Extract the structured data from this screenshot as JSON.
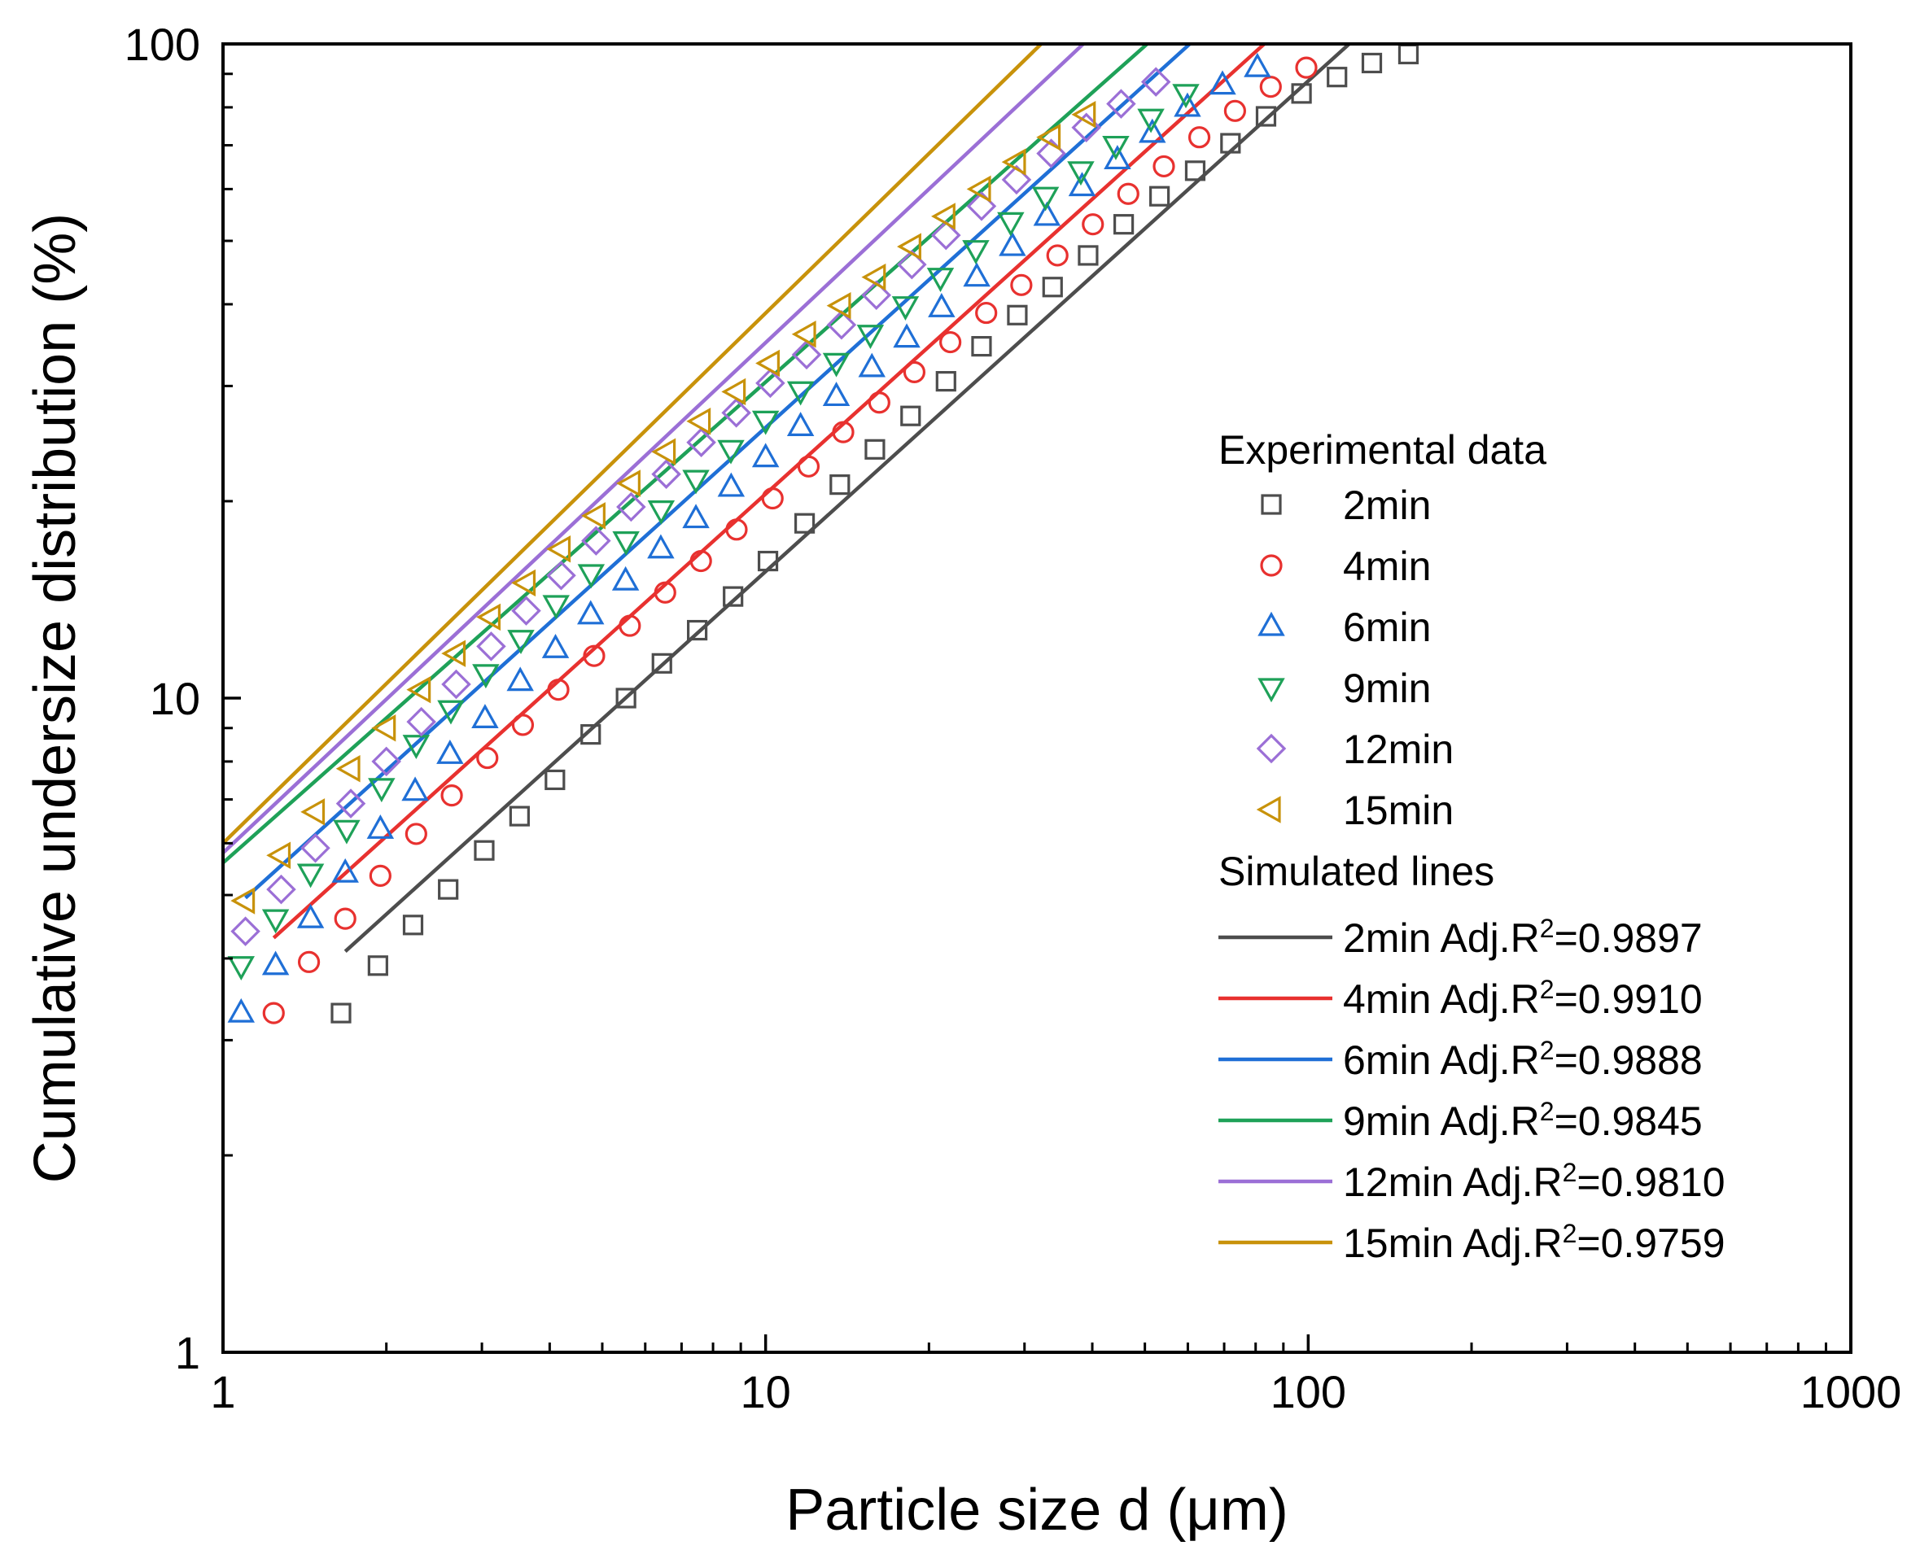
{
  "chart_data": {
    "type": "scatter",
    "xlabel": "Particle size d (μm)",
    "ylabel": "Cumulative undersize distribution (%)",
    "xscale": "log",
    "yscale": "log",
    "xlim": [
      1,
      1000
    ],
    "ylim": [
      1,
      100
    ],
    "x_ticks": [
      {
        "value": 1,
        "label": "1"
      },
      {
        "value": 10,
        "label": "10"
      },
      {
        "value": 100,
        "label": "100"
      },
      {
        "value": 1000,
        "label": "1000"
      }
    ],
    "y_ticks": [
      {
        "value": 1,
        "label": "1"
      },
      {
        "value": 10,
        "label": "10"
      },
      {
        "value": 100,
        "label": "100"
      }
    ],
    "legend_position": "right",
    "legend": {
      "experimental_header": "Experimental data",
      "simulated_header": "Simulated lines"
    },
    "series": [
      {
        "name": "2min",
        "marker": "square",
        "color": "#4d4d4d",
        "fit_label": "2min Adj.R",
        "fit_r2": "=0.9897",
        "x": [
          1.65,
          1.93,
          2.24,
          2.6,
          3.03,
          3.52,
          4.09,
          4.76,
          5.53,
          6.44,
          7.48,
          8.71,
          10.1,
          11.8,
          13.7,
          15.9,
          18.5,
          21.5,
          25.0,
          29.1,
          33.8,
          39.3,
          45.7,
          53.2,
          61.9,
          71.9,
          83.6,
          97.2,
          113,
          131,
          153
        ],
        "y": [
          3.3,
          3.9,
          4.5,
          5.1,
          5.85,
          6.6,
          7.5,
          8.8,
          10.0,
          11.3,
          12.7,
          14.3,
          16.2,
          18.5,
          21.2,
          24.0,
          27.0,
          30.5,
          34.5,
          38.5,
          42.5,
          47.5,
          53.0,
          58.5,
          64.0,
          70.5,
          77.5,
          84.0,
          89.0,
          93.5,
          96.5
        ],
        "fit": {
          "x": [
            1.68,
            119
          ],
          "y": [
            4.1,
            100
          ]
        }
      },
      {
        "name": "4min",
        "marker": "circle",
        "color": "#e8312f",
        "fit_label": "4min Adj.R",
        "fit_r2": "=0.9910",
        "x": [
          1.24,
          1.44,
          1.68,
          1.95,
          2.27,
          2.64,
          3.07,
          3.57,
          4.15,
          4.83,
          5.62,
          6.53,
          7.6,
          8.84,
          10.3,
          12.0,
          13.9,
          16.2,
          18.8,
          21.9,
          25.5,
          29.6,
          34.5,
          40.1,
          46.6,
          54.2,
          63.0,
          73.3,
          85.3,
          99.2
        ],
        "y": [
          3.3,
          3.95,
          4.6,
          5.35,
          6.2,
          7.1,
          8.1,
          9.1,
          10.3,
          11.6,
          12.9,
          14.5,
          16.2,
          18.1,
          20.2,
          22.6,
          25.5,
          28.3,
          31.5,
          35.0,
          38.8,
          42.8,
          47.5,
          53.0,
          59.0,
          65.0,
          72.0,
          79.0,
          86.0,
          92.0
        ],
        "fit": {
          "x": [
            1.24,
            83
          ],
          "y": [
            4.3,
            100
          ]
        }
      },
      {
        "name": "6min",
        "marker": "triangle-up",
        "color": "#1f6fd6",
        "fit_label": "6min Adj.R",
        "fit_r2": "=0.9888",
        "x": [
          1.08,
          1.25,
          1.45,
          1.68,
          1.95,
          2.26,
          2.62,
          3.04,
          3.53,
          4.1,
          4.76,
          5.52,
          6.41,
          7.44,
          8.64,
          10.0,
          11.6,
          13.5,
          15.7,
          18.2,
          21.1,
          24.5,
          28.5,
          33.0,
          38.3,
          44.5,
          51.6,
          59.9,
          69.5,
          80.6
        ],
        "y": [
          3.3,
          3.9,
          4.6,
          5.4,
          6.3,
          7.2,
          8.2,
          9.3,
          10.6,
          11.9,
          13.4,
          15.1,
          16.9,
          18.8,
          21.0,
          23.3,
          26.0,
          28.9,
          32.0,
          35.5,
          39.5,
          44.0,
          49.0,
          54.5,
          60.5,
          66.5,
          73.0,
          80.0,
          86.5,
          92.0
        ],
        "fit": {
          "x": [
            1.1,
            60.5
          ],
          "y": [
            4.95,
            100
          ]
        }
      },
      {
        "name": "9min",
        "marker": "triangle-down",
        "color": "#1ea158",
        "fit_label": "9min Adj.R",
        "fit_r2": "=0.9845",
        "x": [
          1.08,
          1.25,
          1.45,
          1.69,
          1.96,
          2.27,
          2.63,
          3.05,
          3.54,
          4.11,
          4.77,
          5.53,
          6.42,
          7.44,
          8.63,
          10.0,
          11.6,
          13.5,
          15.6,
          18.1,
          21.0,
          24.4,
          28.3,
          32.8,
          38.1,
          44.2,
          51.3,
          59.5
        ],
        "y": [
          3.9,
          4.6,
          5.4,
          6.3,
          7.3,
          8.5,
          9.6,
          10.9,
          12.3,
          13.9,
          15.5,
          17.4,
          19.4,
          21.6,
          24.0,
          26.6,
          29.5,
          32.6,
          36.0,
          39.8,
          44.0,
          48.5,
          53.5,
          58.5,
          64.0,
          70.0,
          77.0,
          84.0
        ],
        "fit": {
          "x": [
            1.0,
            50.5
          ],
          "y": [
            5.6,
            100
          ]
        }
      },
      {
        "name": "12min",
        "marker": "diamond",
        "color": "#9b6fd6",
        "fit_label": "12min Adj.R",
        "fit_r2": "=0.9810",
        "x": [
          1.1,
          1.28,
          1.48,
          1.72,
          2.0,
          2.32,
          2.69,
          3.12,
          3.62,
          4.2,
          4.87,
          5.65,
          6.56,
          7.61,
          8.83,
          10.2,
          11.9,
          13.8,
          16.0,
          18.6,
          21.5,
          25.0,
          29.0,
          33.6,
          39.0,
          45.2,
          52.4
        ],
        "y": [
          4.4,
          5.1,
          5.9,
          6.9,
          8.0,
          9.2,
          10.5,
          12.0,
          13.6,
          15.4,
          17.4,
          19.6,
          22.0,
          24.6,
          27.3,
          30.3,
          33.5,
          37.2,
          41.3,
          46.0,
          51.0,
          56.5,
          62.0,
          68.0,
          74.5,
          81.0,
          87.5
        ],
        "fit": {
          "x": [
            1.0,
            38.5
          ],
          "y": [
            5.8,
            100
          ]
        }
      },
      {
        "name": "15min",
        "marker": "triangle-left",
        "color": "#c8920a",
        "fit_label": "15min Adj.R",
        "fit_r2": "=0.9759",
        "x": [
          1.1,
          1.28,
          1.48,
          1.72,
          2.0,
          2.32,
          2.69,
          3.12,
          3.62,
          4.2,
          4.87,
          5.65,
          6.56,
          7.61,
          8.83,
          10.2,
          11.9,
          13.8,
          16.0,
          18.6,
          21.5,
          25.0,
          29.0,
          33.6,
          39.0
        ],
        "y": [
          4.9,
          5.75,
          6.7,
          7.8,
          9.0,
          10.3,
          11.7,
          13.3,
          15.0,
          16.9,
          19.0,
          21.3,
          23.8,
          26.5,
          29.4,
          32.5,
          36.0,
          39.8,
          44.0,
          49.0,
          54.5,
          60.0,
          66.0,
          72.0,
          78.0
        ],
        "fit": {
          "x": [
            1.0,
            32.2
          ],
          "y": [
            6.0,
            100
          ]
        }
      }
    ]
  }
}
